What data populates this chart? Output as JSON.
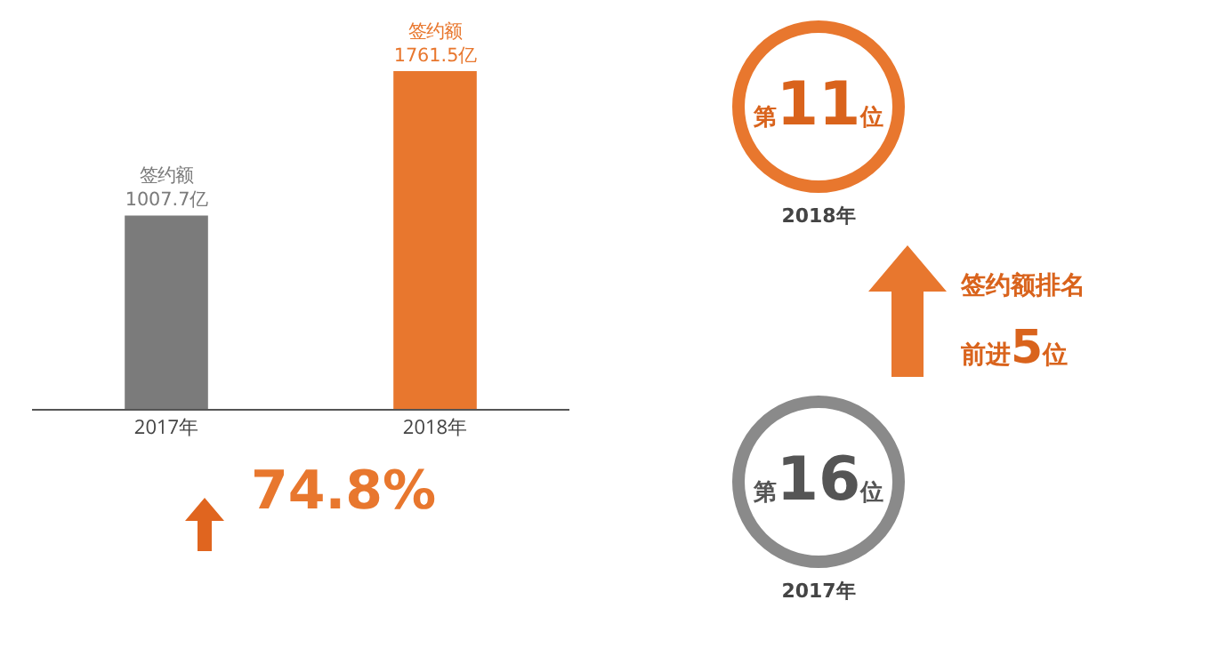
{
  "chart_data": [
    {
      "type": "bar",
      "categories": [
        "2017年",
        "2018年"
      ],
      "values": [
        1007.7,
        1761.5
      ],
      "colors": [
        "#7b7b7b",
        "#e8772e"
      ],
      "tick_labels": "x",
      "value_labels": [
        "签约额\n1007.7亿",
        "签约额\n1761.5亿"
      ],
      "annotations": [
        "74.8%"
      ]
    },
    {
      "type": "other",
      "annotations": [
        "第11位",
        "2018年",
        "签约额排名",
        "前进5位",
        "第16位",
        "2017年"
      ]
    }
  ]
}
